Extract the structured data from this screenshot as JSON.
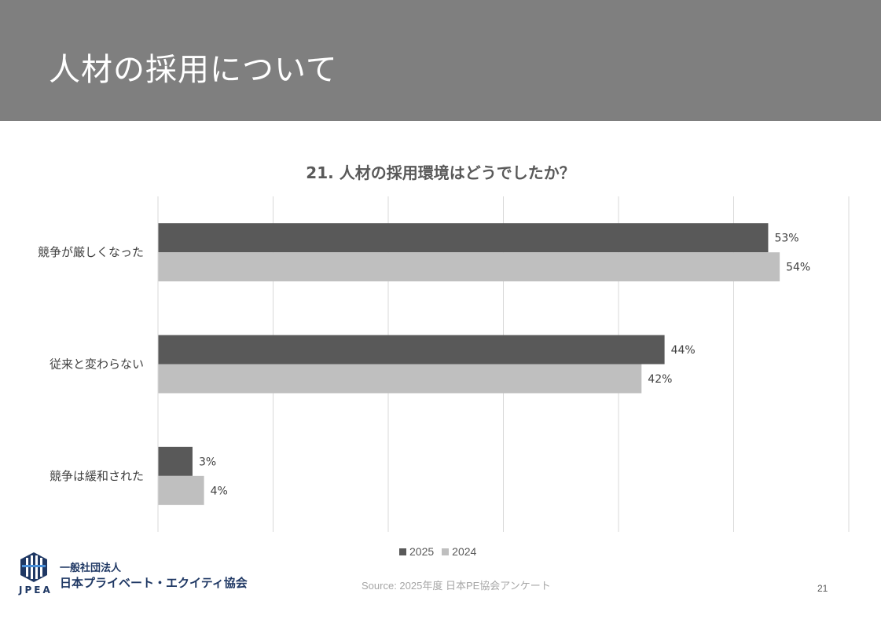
{
  "header": {
    "title": "人材の採用について"
  },
  "chart_data": {
    "type": "bar",
    "orientation": "horizontal",
    "title": "21. 人材の採用環境はどうでしたか？",
    "categories": [
      "競争が厳しくなった",
      "従来と変わらない",
      "競争は緩和された"
    ],
    "series": [
      {
        "name": "2025",
        "values": [
          53,
          44,
          3
        ],
        "labels": [
          "53%",
          "44%",
          "3%"
        ],
        "color": "#595959"
      },
      {
        "name": "2024",
        "values": [
          54,
          42,
          4
        ],
        "labels": [
          "54%",
          "42%",
          "4%"
        ],
        "color": "#bfbfbf"
      }
    ],
    "xlim": [
      0,
      60
    ],
    "grid": true,
    "legend_position": "bottom"
  },
  "legend": {
    "item1": "2025",
    "item2": "2024"
  },
  "logo": {
    "abbr": "JPEA",
    "line1": "一般社団法人",
    "line2": "日本プライベート・エクイティ協会"
  },
  "footer": {
    "source": "Source: 2025年度 日本PE協会アンケート",
    "page_number": "21"
  }
}
